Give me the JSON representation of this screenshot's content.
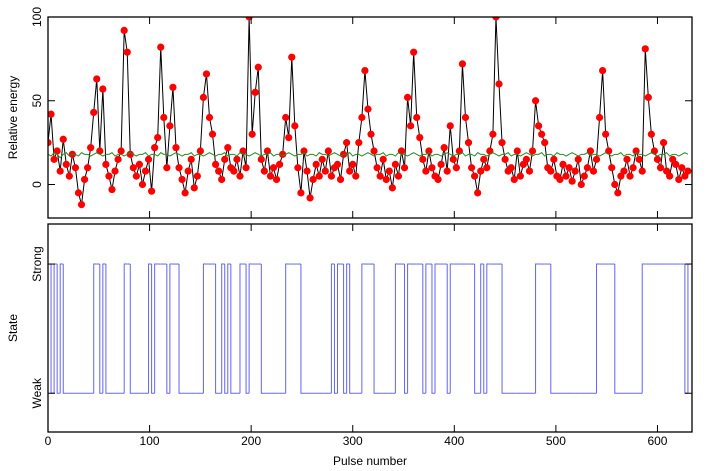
{
  "chart_data": {
    "type": "line",
    "xlabel": "Pulse number",
    "xlim": [
      0,
      634
    ],
    "xticks": [
      0,
      100,
      200,
      300,
      400,
      500,
      600
    ],
    "x": [
      0,
      3,
      6,
      9,
      12,
      15,
      18,
      21,
      24,
      27,
      30,
      33,
      36,
      39,
      42,
      45,
      48,
      51,
      54,
      57,
      60,
      63,
      66,
      69,
      72,
      75,
      78,
      81,
      84,
      87,
      90,
      93,
      96,
      99,
      102,
      105,
      108,
      111,
      114,
      117,
      120,
      123,
      126,
      129,
      132,
      135,
      138,
      141,
      144,
      147,
      150,
      153,
      156,
      159,
      162,
      165,
      168,
      171,
      174,
      177,
      180,
      183,
      186,
      189,
      192,
      195,
      198,
      201,
      204,
      207,
      210,
      213,
      216,
      219,
      222,
      225,
      228,
      231,
      234,
      237,
      240,
      243,
      246,
      249,
      252,
      255,
      258,
      261,
      264,
      267,
      270,
      273,
      276,
      279,
      282,
      285,
      288,
      291,
      294,
      297,
      300,
      303,
      306,
      309,
      312,
      315,
      318,
      321,
      324,
      327,
      330,
      333,
      336,
      339,
      342,
      345,
      348,
      351,
      354,
      357,
      360,
      363,
      366,
      369,
      372,
      375,
      378,
      381,
      384,
      387,
      390,
      393,
      396,
      399,
      402,
      405,
      408,
      411,
      414,
      417,
      420,
      423,
      426,
      429,
      432,
      435,
      438,
      441,
      444,
      447,
      450,
      453,
      456,
      459,
      462,
      465,
      468,
      471,
      474,
      477,
      480,
      483,
      486,
      489,
      492,
      495,
      498,
      501,
      504,
      507,
      510,
      513,
      516,
      519,
      522,
      525,
      528,
      531,
      534,
      537,
      540,
      543,
      546,
      549,
      552,
      555,
      558,
      561,
      564,
      567,
      570,
      573,
      576,
      579,
      582,
      585,
      588,
      591,
      594,
      597,
      600,
      603,
      606,
      609,
      612,
      615,
      618,
      621,
      624,
      627,
      630
    ],
    "panels": [
      {
        "ylabel": "Relative energy",
        "ylim": [
          -20,
          100
        ],
        "yticks": [
          0,
          50,
          100
        ],
        "series": [
          {
            "name": "Relative energy",
            "color": "#000000",
            "marker_color": "#ff0000",
            "values": [
              25,
              42,
              15,
              20,
              8,
              27,
              12,
              5,
              18,
              10,
              -5,
              -12,
              3,
              10,
              22,
              43,
              63,
              20,
              57,
              12,
              5,
              -3,
              8,
              15,
              20,
              92,
              79,
              18,
              10,
              5,
              12,
              0,
              8,
              15,
              -4,
              22,
              28,
              82,
              40,
              10,
              35,
              58,
              22,
              10,
              3,
              -5,
              8,
              15,
              -2,
              5,
              20,
              52,
              66,
              40,
              30,
              12,
              8,
              3,
              15,
              22,
              10,
              8,
              15,
              5,
              20,
              10,
              100,
              30,
              55,
              70,
              15,
              8,
              20,
              5,
              10,
              3,
              12,
              18,
              40,
              28,
              76,
              35,
              10,
              -5,
              20,
              8,
              -8,
              3,
              12,
              5,
              15,
              8,
              20,
              5,
              10,
              12,
              3,
              18,
              25,
              8,
              12,
              5,
              25,
              40,
              68,
              45,
              30,
              20,
              10,
              5,
              15,
              3,
              8,
              -2,
              12,
              5,
              20,
              10,
              52,
              35,
              79,
              40,
              28,
              15,
              8,
              20,
              10,
              5,
              3,
              12,
              22,
              8,
              35,
              15,
              10,
              20,
              72,
              40,
              25,
              10,
              5,
              -5,
              8,
              15,
              10,
              20,
              30,
              100,
              60,
              25,
              15,
              8,
              10,
              3,
              20,
              5,
              12,
              15,
              8,
              20,
              50,
              35,
              30,
              25,
              10,
              8,
              15,
              5,
              3,
              12,
              5,
              10,
              2,
              8,
              15,
              0,
              5,
              10,
              20,
              8,
              15,
              40,
              68,
              30,
              20,
              10,
              0,
              -5,
              5,
              8,
              15,
              5,
              10,
              20,
              15,
              8,
              81,
              52,
              30,
              20,
              15,
              10,
              25,
              8,
              5,
              15,
              12,
              3,
              10,
              5,
              8
            ]
          },
          {
            "name": "Baseline",
            "color": "#228b22",
            "values": [
              18,
              17,
              19,
              18,
              16,
              18,
              19,
              17,
              18,
              18,
              17,
              19,
              18,
              18,
              17,
              18,
              19,
              18,
              17,
              18,
              18,
              19,
              17,
              18,
              18,
              17,
              18,
              19,
              18,
              17,
              18,
              18,
              19,
              17,
              18,
              18,
              17,
              19,
              18,
              18,
              17,
              18,
              19,
              18,
              17,
              18,
              18,
              19,
              17,
              18,
              18,
              17,
              18,
              19,
              18,
              17,
              18,
              18,
              19,
              17,
              18,
              18,
              17,
              19,
              18,
              18,
              17,
              18,
              19,
              18,
              17,
              18,
              18,
              19,
              17,
              18,
              18,
              17,
              18,
              19,
              18,
              17,
              18,
              18,
              19,
              17,
              18,
              18,
              17,
              19,
              18,
              18,
              17,
              18,
              19,
              18,
              17,
              18,
              18,
              19,
              17,
              18,
              18,
              17,
              18,
              19,
              18,
              17,
              18,
              18,
              19,
              17,
              18,
              18,
              17,
              19,
              18,
              18,
              17,
              18,
              19,
              18,
              17,
              18,
              18,
              19,
              17,
              18,
              18,
              17,
              18,
              19,
              18,
              17,
              18,
              18,
              19,
              17,
              18,
              18,
              17,
              19,
              18,
              18,
              17,
              18,
              19,
              18,
              17,
              18,
              18,
              19,
              17,
              18,
              18,
              17,
              18,
              19,
              18,
              17,
              18,
              18,
              19,
              17,
              18,
              18,
              17,
              19,
              18,
              18,
              17,
              18,
              19,
              18,
              17,
              18,
              18,
              19,
              17,
              18,
              18,
              17,
              18,
              19,
              18,
              17,
              18,
              18,
              19,
              17,
              18,
              18,
              17,
              19,
              18,
              18,
              17,
              18,
              19,
              18,
              17,
              18,
              18,
              19,
              17,
              18,
              18,
              17,
              18,
              19,
              18
            ]
          }
        ]
      },
      {
        "ylabel": "State",
        "ylim": [
          -0.3,
          1.31
        ],
        "yticks": [
          {
            "value": 0,
            "label": "Weak"
          },
          {
            "value": 1,
            "label": "Strong"
          }
        ],
        "series": [
          {
            "name": "State",
            "color": "#6464f0",
            "step": true,
            "values": [
              1,
              0,
              1,
              0,
              1,
              0,
              0,
              0,
              0,
              0,
              0,
              0,
              0,
              0,
              0,
              1,
              1,
              0,
              1,
              0,
              0,
              0,
              0,
              0,
              0,
              1,
              1,
              0,
              0,
              0,
              0,
              0,
              0,
              1,
              0,
              1,
              1,
              1,
              1,
              0,
              1,
              1,
              1,
              0,
              0,
              0,
              0,
              0,
              0,
              0,
              0,
              1,
              1,
              1,
              1,
              0,
              0,
              1,
              0,
              1,
              0,
              0,
              0,
              1,
              1,
              0,
              1,
              1,
              1,
              1,
              0,
              0,
              0,
              0,
              0,
              0,
              0,
              0,
              1,
              1,
              1,
              1,
              1,
              0,
              0,
              0,
              0,
              0,
              0,
              0,
              0,
              0,
              0,
              1,
              0,
              1,
              1,
              0,
              1,
              0,
              0,
              0,
              0,
              1,
              1,
              1,
              1,
              0,
              0,
              0,
              0,
              0,
              0,
              0,
              1,
              1,
              1,
              0,
              1,
              1,
              1,
              1,
              1,
              0,
              1,
              1,
              0,
              1,
              1,
              1,
              1,
              0,
              1,
              1,
              1,
              1,
              1,
              1,
              1,
              1,
              0,
              0,
              1,
              0,
              1,
              1,
              1,
              1,
              1,
              0,
              0,
              0,
              0,
              0,
              0,
              0,
              0,
              0,
              0,
              0,
              1,
              1,
              1,
              1,
              1,
              0,
              0,
              0,
              0,
              0,
              0,
              0,
              0,
              0,
              0,
              0,
              0,
              0,
              0,
              0,
              1,
              1,
              1,
              1,
              1,
              1,
              0,
              0,
              0,
              0,
              0,
              0,
              0,
              0,
              0,
              1,
              1,
              1,
              1,
              1,
              1,
              1,
              1,
              1,
              1,
              1,
              1,
              1,
              1,
              0,
              1
            ]
          }
        ]
      }
    ]
  }
}
